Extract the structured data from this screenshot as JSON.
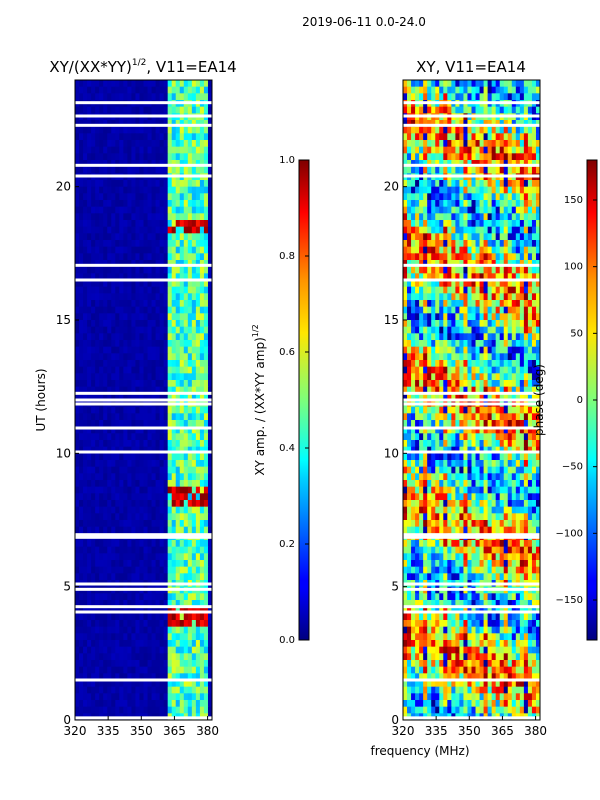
{
  "figure": {
    "suptitle": "2019-06-11 0.0-24.0",
    "shared_xlabel": "frequency (MHz)"
  },
  "chart_data": [
    {
      "type": "heatmap",
      "title": "XY/(XX*YY)",
      "title_superscript": "1/2",
      "title_suffix": ", V11=EA14",
      "xlabel": "frequency (MHz)",
      "ylabel": "UT (hours)",
      "xlim": [
        320,
        382
      ],
      "ylim": [
        0,
        24
      ],
      "xticks": [
        320,
        335,
        350,
        365,
        380
      ],
      "xtick_labels": [
        "320",
        "335",
        "350",
        "365",
        "380"
      ],
      "yticks": [
        0,
        5,
        10,
        15,
        20
      ],
      "ytick_labels": [
        "0",
        "5",
        "10",
        "15",
        "20"
      ],
      "colormap": "jet",
      "colorbar": {
        "label": "XY amp. / (XX*YY amp)",
        "label_superscript": "1/2",
        "range": [
          0.0,
          1.0
        ],
        "ticks": [
          0.0,
          0.2,
          0.4,
          0.6,
          0.8,
          1.0
        ],
        "tick_labels": [
          "0.0",
          "0.2",
          "0.4",
          "0.6",
          "0.8",
          "1.0"
        ]
      },
      "description_values": {
        "background_value": 0.02,
        "active_band_mhz": [
          362,
          380
        ],
        "active_band_value": 0.45,
        "hotspot_hours": [
          3.8,
          8.3,
          18.5
        ],
        "hotspot_value": 0.95
      }
    },
    {
      "type": "heatmap",
      "title": "XY, V11=EA14",
      "xlim": [
        320,
        382
      ],
      "ylim": [
        0,
        24
      ],
      "xticks": [
        320,
        335,
        350,
        365,
        380
      ],
      "xtick_labels": [
        "320",
        "335",
        "350",
        "365",
        "380"
      ],
      "yticks": [
        0,
        5,
        10,
        15,
        20
      ],
      "ytick_labels": [
        "0",
        "5",
        "10",
        "15",
        "20"
      ],
      "colormap": "jet",
      "colorbar": {
        "label": "phase (deg)",
        "range": [
          -180,
          180
        ],
        "ticks": [
          150,
          100,
          50,
          0,
          -50,
          -100,
          -150
        ],
        "tick_labels": [
          "150",
          "100",
          "50",
          "0",
          "−50",
          "−100",
          "−150"
        ]
      },
      "description_values": {
        "phase_spread_deg": [
          -180,
          180
        ]
      }
    }
  ],
  "flag_gaps_hours": [
    0.08,
    1.5,
    4.05,
    4.25,
    4.9,
    5.1,
    6.85,
    6.95,
    10.05,
    10.95,
    11.85,
    12.0,
    12.25,
    16.5,
    17.05,
    20.4,
    20.8,
    22.3,
    22.65,
    23.15
  ]
}
